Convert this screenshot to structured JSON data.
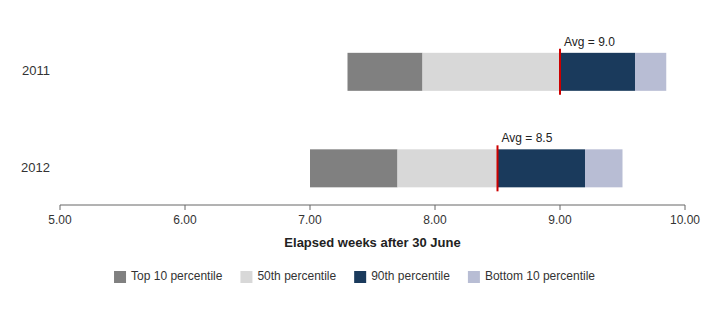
{
  "chart_data": {
    "type": "bar",
    "orientation": "horizontal",
    "xlabel": "Elapsed weeks after 30 June",
    "categories": [
      "2011",
      "2012"
    ],
    "series": [
      {
        "name": "Top 10 percentile",
        "color": "#808080",
        "starts": [
          7.3,
          7.0
        ],
        "values": [
          7.9,
          7.7
        ]
      },
      {
        "name": "50th percentile",
        "color": "#d8d8d8",
        "starts": [
          7.9,
          7.7
        ],
        "values": [
          9.0,
          8.5
        ]
      },
      {
        "name": "90th percentile",
        "color": "#1a3a5c",
        "starts": [
          9.0,
          8.5
        ],
        "values": [
          9.6,
          9.2
        ]
      },
      {
        "name": "Bottom 10 percentile",
        "color": "#b8bdd4",
        "starts": [
          9.6,
          9.2
        ],
        "values": [
          9.85,
          9.5
        ]
      }
    ],
    "averages": {
      "color": "#cc0000",
      "values": [
        9.0,
        8.5
      ],
      "value_labels": [
        "Avg = 9.0",
        "Avg = 8.5"
      ]
    },
    "xlim": [
      5.0,
      10.0
    ],
    "xticks": [
      {
        "value": 5.0,
        "label": "5.00"
      },
      {
        "value": 6.0,
        "label": "6.00"
      },
      {
        "value": 7.0,
        "label": "7.00"
      },
      {
        "value": 8.0,
        "label": "8.00"
      },
      {
        "value": 9.0,
        "label": "9.00"
      },
      {
        "value": 10.0,
        "label": "10.00"
      }
    ],
    "grid": false,
    "legend": "bottom"
  }
}
